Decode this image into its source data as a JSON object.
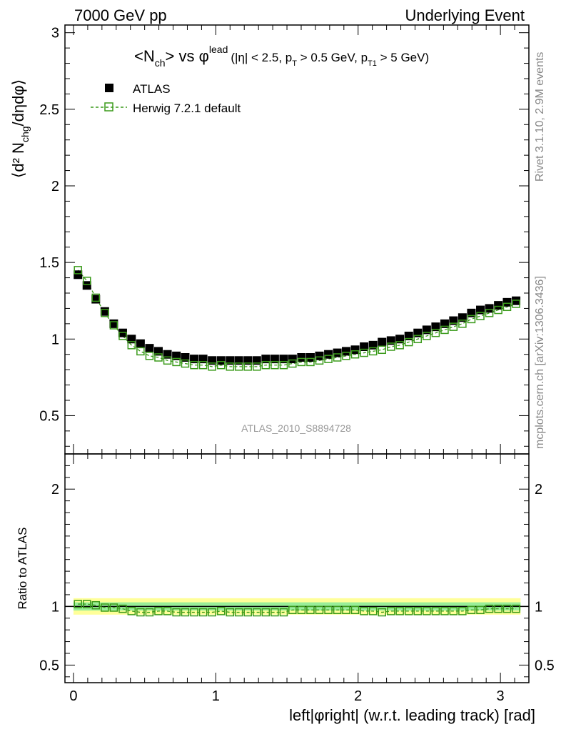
{
  "header": {
    "left": "7000 GeV pp",
    "right": "Underlying Event"
  },
  "title_main": "<N",
  "title_sub1": "ch",
  "title_mid": "> vs φ",
  "title_sup": "lead",
  "title_cuts": "(|η| < 2.5, p",
  "title_cuts_sub": "T",
  "title_cuts2": " > 0.5 GeV, p",
  "title_cuts_sub2": "T1",
  "title_cuts3": " > 5 GeV)",
  "legend": {
    "data_label": "ATLAS",
    "mc_label": "Herwig 7.2.1 default"
  },
  "ylabel_main": "⟨d² N",
  "ylabel_sub": "chg",
  "ylabel_end": "/dηdφ⟩",
  "ylabel_ratio": "Ratio to ATLAS",
  "xlabel": "left|φright| (w.r.t. leading track) [rad]",
  "watermark": "ATLAS_2010_S8894728",
  "side_rivet": "Rivet 3.1.10,  2.9M events",
  "side_mcplots": "mcplots.cern.ch [arXiv:1306.3436]",
  "colors": {
    "data": "#000000",
    "mc": "#3a9a1a",
    "band_outer": "#ffff99",
    "band_inner": "#99ee99"
  },
  "chart_data": {
    "type": "scatter",
    "main_ylim": [
      0.25,
      3.05
    ],
    "ratio_ylim": [
      0.35,
      2.3
    ],
    "xlim": [
      -0.06,
      3.2
    ],
    "x_ticks": [
      0,
      1,
      2,
      3
    ],
    "main_y_ticks": [
      0.5,
      1,
      1.5,
      2,
      2.5,
      3
    ],
    "ratio_y_ticks": [
      0.5,
      1,
      2
    ],
    "x": [
      0.0314,
      0.0942,
      0.157,
      0.22,
      0.283,
      0.346,
      0.408,
      0.471,
      0.534,
      0.597,
      0.66,
      0.723,
      0.785,
      0.848,
      0.911,
      0.974,
      1.037,
      1.1,
      1.162,
      1.225,
      1.288,
      1.351,
      1.414,
      1.477,
      1.539,
      1.602,
      1.665,
      1.728,
      1.791,
      1.854,
      1.916,
      1.979,
      2.042,
      2.105,
      2.168,
      2.231,
      2.293,
      2.356,
      2.419,
      2.482,
      2.545,
      2.608,
      2.67,
      2.733,
      2.796,
      2.859,
      2.922,
      2.985,
      3.047,
      3.11
    ],
    "series": [
      {
        "name": "ATLAS",
        "values": [
          1.42,
          1.35,
          1.26,
          1.18,
          1.1,
          1.04,
          1.0,
          0.97,
          0.94,
          0.92,
          0.9,
          0.89,
          0.88,
          0.87,
          0.87,
          0.86,
          0.86,
          0.86,
          0.86,
          0.86,
          0.86,
          0.87,
          0.87,
          0.87,
          0.87,
          0.88,
          0.88,
          0.89,
          0.9,
          0.91,
          0.92,
          0.93,
          0.95,
          0.96,
          0.98,
          0.99,
          1.0,
          1.02,
          1.04,
          1.06,
          1.08,
          1.1,
          1.12,
          1.14,
          1.17,
          1.19,
          1.2,
          1.22,
          1.24,
          1.25
        ]
      },
      {
        "name": "Herwig 7.2.1 default",
        "values": [
          1.45,
          1.38,
          1.27,
          1.17,
          1.09,
          1.02,
          0.96,
          0.92,
          0.89,
          0.88,
          0.86,
          0.85,
          0.84,
          0.83,
          0.83,
          0.82,
          0.83,
          0.82,
          0.82,
          0.82,
          0.82,
          0.83,
          0.83,
          0.83,
          0.84,
          0.85,
          0.85,
          0.86,
          0.87,
          0.88,
          0.89,
          0.9,
          0.91,
          0.92,
          0.93,
          0.95,
          0.96,
          0.98,
          1.0,
          1.02,
          1.04,
          1.06,
          1.08,
          1.1,
          1.13,
          1.15,
          1.17,
          1.19,
          1.21,
          1.23
        ]
      }
    ],
    "ratio": [
      1.02,
      1.02,
      1.01,
      0.99,
      0.99,
      0.98,
      0.96,
      0.95,
      0.95,
      0.96,
      0.96,
      0.95,
      0.95,
      0.95,
      0.95,
      0.95,
      0.96,
      0.95,
      0.95,
      0.95,
      0.95,
      0.95,
      0.95,
      0.95,
      0.97,
      0.97,
      0.97,
      0.97,
      0.97,
      0.97,
      0.97,
      0.97,
      0.96,
      0.96,
      0.95,
      0.96,
      0.96,
      0.96,
      0.96,
      0.96,
      0.96,
      0.96,
      0.96,
      0.96,
      0.97,
      0.97,
      0.98,
      0.98,
      0.98,
      0.98
    ]
  }
}
